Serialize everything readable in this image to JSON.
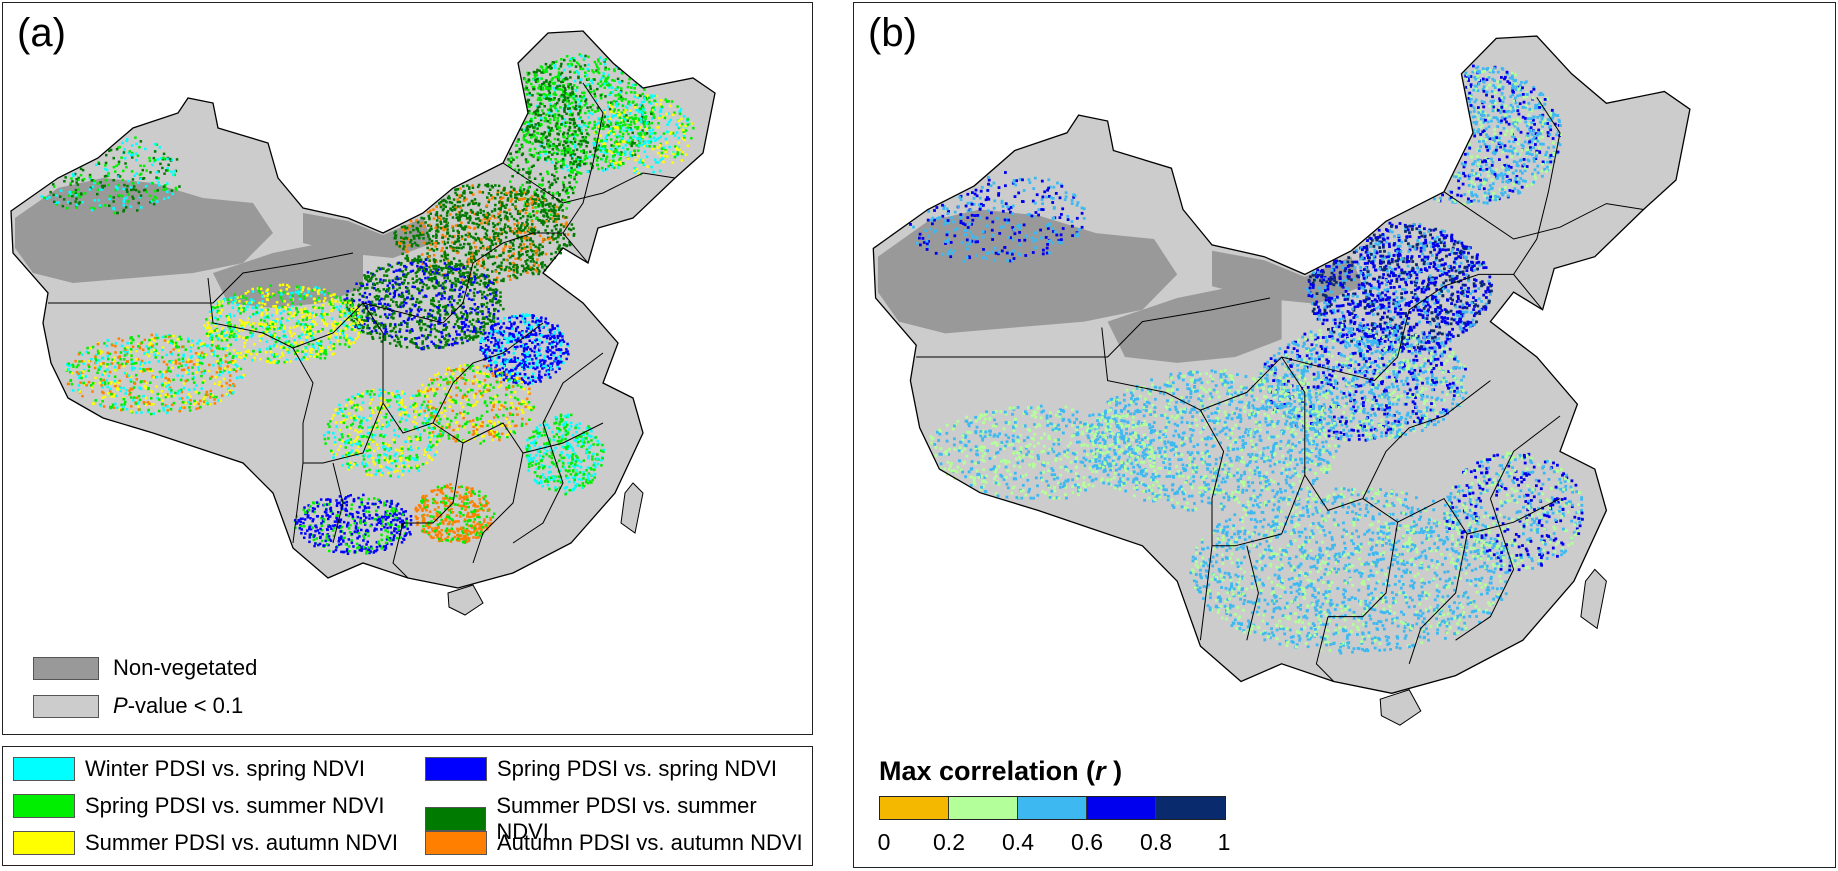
{
  "panel_a": {
    "label": "(a)",
    "inline_legend": [
      {
        "label": "Non-vegetated",
        "color": "#999999"
      },
      {
        "label_italic": "P",
        "label_rest": "-value < 0.1",
        "color": "#cccccc"
      }
    ]
  },
  "panel_b": {
    "label": "(b)",
    "colorbar": {
      "title_main": "Max correlation (",
      "title_var": "r",
      "title_end": " )",
      "segments": [
        {
          "color": "#f5b800"
        },
        {
          "color": "#b3ff99"
        },
        {
          "color": "#3db8f0"
        },
        {
          "color": "#0000ee"
        },
        {
          "color": "#0a2a6e"
        }
      ],
      "ticks": [
        "0",
        "0.2",
        "0.4",
        "0.6",
        "0.8",
        "1"
      ]
    }
  },
  "legend_a": {
    "items": [
      {
        "label": "Winter PDSI vs. spring NDVI",
        "color": "#00ffff"
      },
      {
        "label": "Spring PDSI vs. spring NDVI",
        "color": "#0000ff"
      },
      {
        "label": "Spring PDSI vs. summer NDVI",
        "color": "#00ee00"
      },
      {
        "label": "Summer PDSI vs. summer NDVI",
        "color": "#007a00"
      },
      {
        "label": "Summer PDSI vs. autumn NDVI",
        "color": "#ffff00"
      },
      {
        "label": "Autumn PDSI vs. autumn NDVI",
        "color": "#ff7f00"
      }
    ]
  },
  "colors": {
    "non_vegetated": "#999999",
    "not_significant": "#cccccc",
    "boundary": "#000000"
  }
}
